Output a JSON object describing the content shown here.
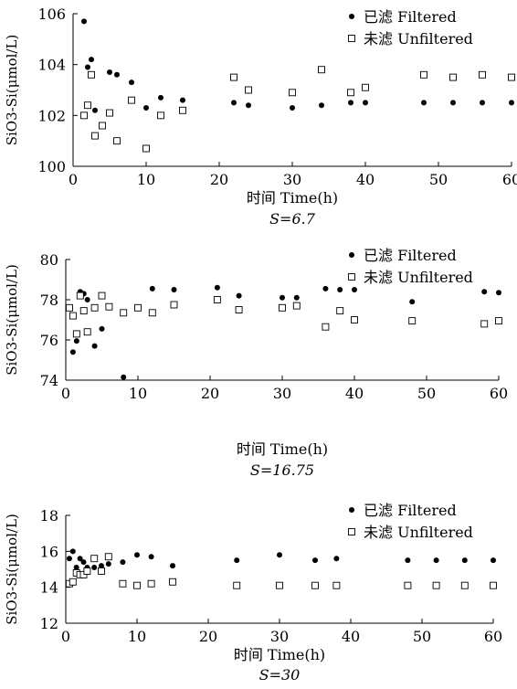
{
  "chart_data": [
    {
      "type": "scatter",
      "xlabel": "时间 Time(h)",
      "ylabel": "SiO3-Si(μmol/L)",
      "subtitle": "S=6.7",
      "xlim": [
        0,
        60
      ],
      "ylim": [
        100,
        106
      ],
      "xticks": [
        0,
        10,
        20,
        30,
        40,
        50,
        60
      ],
      "yticks": [
        100,
        102,
        104,
        106
      ],
      "grid": false,
      "legend_position": "top-right",
      "series": [
        {
          "name": "已滤 Filtered",
          "marker": "filled-circle",
          "points": [
            [
              1.5,
              105.7
            ],
            [
              2,
              103.9
            ],
            [
              2.5,
              104.2
            ],
            [
              3,
              102.2
            ],
            [
              4,
              101.6
            ],
            [
              5,
              103.7
            ],
            [
              6,
              103.6
            ],
            [
              8,
              103.3
            ],
            [
              10,
              102.3
            ],
            [
              12,
              102.7
            ],
            [
              15,
              102.6
            ],
            [
              22,
              102.5
            ],
            [
              24,
              102.4
            ],
            [
              30,
              102.3
            ],
            [
              34,
              102.4
            ],
            [
              38,
              102.5
            ],
            [
              40,
              102.5
            ],
            [
              48,
              102.5
            ],
            [
              52,
              102.5
            ],
            [
              56,
              102.5
            ],
            [
              60,
              102.5
            ]
          ]
        },
        {
          "name": "未滤 Unfiltered",
          "marker": "open-square",
          "points": [
            [
              1.5,
              102.0
            ],
            [
              2,
              102.4
            ],
            [
              2.5,
              103.6
            ],
            [
              3,
              101.2
            ],
            [
              4,
              101.6
            ],
            [
              5,
              102.1
            ],
            [
              6,
              101.0
            ],
            [
              8,
              102.6
            ],
            [
              10,
              100.7
            ],
            [
              12,
              102.0
            ],
            [
              15,
              102.2
            ],
            [
              22,
              103.5
            ],
            [
              24,
              103.0
            ],
            [
              30,
              102.9
            ],
            [
              34,
              103.8
            ],
            [
              38,
              102.9
            ],
            [
              40,
              103.1
            ],
            [
              48,
              103.6
            ],
            [
              52,
              103.5
            ],
            [
              56,
              103.6
            ],
            [
              60,
              103.5
            ]
          ]
        }
      ]
    },
    {
      "type": "scatter",
      "xlabel": "时间 Time(h)",
      "ylabel": "SiO3-Si(μmol/L)",
      "subtitle": "S=16.75",
      "xlim": [
        0,
        60
      ],
      "ylim": [
        74,
        80
      ],
      "xticks": [
        0,
        10,
        20,
        30,
        40,
        50,
        60
      ],
      "yticks": [
        74,
        76,
        78,
        80
      ],
      "grid": false,
      "legend_position": "top-right",
      "series": [
        {
          "name": "已滤 Filtered",
          "marker": "filled-circle",
          "points": [
            [
              1,
              75.4
            ],
            [
              1.5,
              75.95
            ],
            [
              2,
              78.4
            ],
            [
              2.5,
              78.3
            ],
            [
              3,
              78.0
            ],
            [
              4,
              75.7
            ],
            [
              5,
              76.55
            ],
            [
              8,
              74.15
            ],
            [
              10,
              77.6
            ],
            [
              12,
              78.55
            ],
            [
              15,
              78.5
            ],
            [
              21,
              78.6
            ],
            [
              24,
              78.2
            ],
            [
              30,
              78.1
            ],
            [
              32,
              78.1
            ],
            [
              36,
              78.55
            ],
            [
              38,
              78.5
            ],
            [
              40,
              78.5
            ],
            [
              48,
              77.9
            ],
            [
              58,
              78.4
            ],
            [
              60,
              78.35
            ]
          ]
        },
        {
          "name": "未滤 Unfiltered",
          "marker": "open-square",
          "points": [
            [
              0.5,
              77.6
            ],
            [
              1,
              77.2
            ],
            [
              1.5,
              76.3
            ],
            [
              2,
              78.2
            ],
            [
              2.5,
              77.45
            ],
            [
              3,
              76.4
            ],
            [
              4,
              77.6
            ],
            [
              5,
              78.2
            ],
            [
              6,
              77.65
            ],
            [
              8,
              77.35
            ],
            [
              10,
              77.6
            ],
            [
              12,
              77.35
            ],
            [
              15,
              77.75
            ],
            [
              21,
              78.0
            ],
            [
              24,
              77.5
            ],
            [
              30,
              77.6
            ],
            [
              32,
              77.7
            ],
            [
              36,
              76.65
            ],
            [
              38,
              77.45
            ],
            [
              40,
              77.0
            ],
            [
              48,
              76.95
            ],
            [
              58,
              76.8
            ],
            [
              60,
              76.95
            ]
          ]
        }
      ]
    },
    {
      "type": "scatter",
      "xlabel": "时间 Time(h)",
      "ylabel": "SiO3-Si(μmol/L)",
      "subtitle": "S=30",
      "xlim": [
        0,
        60
      ],
      "ylim": [
        12,
        18
      ],
      "xticks": [
        0,
        10,
        20,
        30,
        40,
        50,
        60
      ],
      "yticks": [
        12,
        14,
        16,
        18
      ],
      "grid": false,
      "legend_position": "top-right",
      "series": [
        {
          "name": "已滤 Filtered",
          "marker": "filled-circle",
          "points": [
            [
              0.5,
              15.6
            ],
            [
              1,
              16.0
            ],
            [
              1.5,
              15.1
            ],
            [
              2,
              15.6
            ],
            [
              2.5,
              15.4
            ],
            [
              3,
              15.1
            ],
            [
              4,
              15.1
            ],
            [
              5,
              15.2
            ],
            [
              6,
              15.3
            ],
            [
              8,
              15.4
            ],
            [
              10,
              15.8
            ],
            [
              12,
              15.7
            ],
            [
              15,
              15.2
            ],
            [
              24,
              15.5
            ],
            [
              30,
              15.8
            ],
            [
              35,
              15.5
            ],
            [
              38,
              15.6
            ],
            [
              48,
              15.5
            ],
            [
              52,
              15.5
            ],
            [
              56,
              15.5
            ],
            [
              60,
              15.5
            ]
          ]
        },
        {
          "name": "未滤 Unfiltered",
          "marker": "open-square",
          "points": [
            [
              0.5,
              14.2
            ],
            [
              1,
              14.3
            ],
            [
              1.5,
              14.8
            ],
            [
              2,
              14.7
            ],
            [
              2.5,
              14.7
            ],
            [
              3,
              14.9
            ],
            [
              4,
              15.6
            ],
            [
              5,
              14.9
            ],
            [
              6,
              15.7
            ],
            [
              8,
              14.2
            ],
            [
              10,
              14.1
            ],
            [
              12,
              14.2
            ],
            [
              15,
              14.3
            ],
            [
              24,
              14.1
            ],
            [
              30,
              14.1
            ],
            [
              35,
              14.1
            ],
            [
              38,
              14.1
            ],
            [
              48,
              14.1
            ],
            [
              52,
              14.1
            ],
            [
              56,
              14.1
            ],
            [
              60,
              14.1
            ]
          ]
        }
      ]
    }
  ]
}
